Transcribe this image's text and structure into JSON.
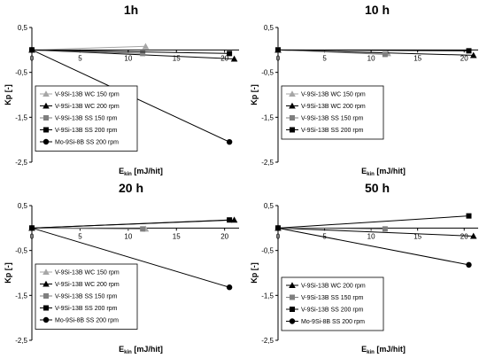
{
  "chart_data": [
    {
      "type": "line",
      "title": "1h",
      "xlabel": "E",
      "xlabel_sub": "kin",
      "xlabel_unit": " [mJ/hit]",
      "ylabel": "Kp [-]",
      "xlim": [
        0,
        21.5
      ],
      "ylim": [
        -2.5,
        0.5
      ],
      "xticks": [
        0,
        5,
        10,
        15,
        20
      ],
      "yticks": [
        0.5,
        -0.5,
        -1.5,
        -2.5
      ],
      "ytick_labels": [
        "0,5",
        "-0,5",
        "-1,5",
        "-2,5"
      ],
      "series": [
        {
          "name": "V-9Si-13B WC 150 rpm",
          "marker": "triangle",
          "color": "#a6a6a6",
          "x": [
            0,
            11.8
          ],
          "y": [
            0,
            0.08
          ]
        },
        {
          "name": "V-9Si-13B WC 200 rpm",
          "marker": "triangle",
          "color": "#000000",
          "x": [
            0,
            21
          ],
          "y": [
            0,
            -0.2
          ]
        },
        {
          "name": "V-9Si-13B SS 150 rpm",
          "marker": "square",
          "color": "#7f7f7f",
          "x": [
            0,
            11.5
          ],
          "y": [
            0,
            -0.08
          ]
        },
        {
          "name": "V-9Si-13B SS 200 rpm",
          "marker": "square",
          "color": "#000000",
          "x": [
            0,
            20.5
          ],
          "y": [
            0,
            -0.08
          ]
        },
        {
          "name": "Mo-9Si-8B SS 200 rpm",
          "marker": "circle",
          "color": "#000000",
          "x": [
            0,
            20.5
          ],
          "y": [
            0,
            -2.05
          ]
        }
      ]
    },
    {
      "type": "line",
      "title": "10 h",
      "xlabel": "E",
      "xlabel_sub": "kin",
      "xlabel_unit": " [mJ/hit]",
      "ylabel": "Kp [-]",
      "xlim": [
        0,
        21.5
      ],
      "ylim": [
        -2.5,
        0.5
      ],
      "xticks": [
        0,
        5,
        10,
        15,
        20
      ],
      "yticks": [
        0.5,
        -0.5,
        -1.5,
        -2.5
      ],
      "ytick_labels": [
        "0,5",
        "-0,5",
        "-1,5",
        "-2,5"
      ],
      "series": [
        {
          "name": "V-9Si-13B WC 150 rpm",
          "marker": "triangle",
          "color": "#a6a6a6",
          "x": [
            0,
            11.8
          ],
          "y": [
            0,
            -0.08
          ]
        },
        {
          "name": "V-9Si-13B WC 200 rpm",
          "marker": "triangle",
          "color": "#000000",
          "x": [
            0,
            21
          ],
          "y": [
            0,
            -0.12
          ]
        },
        {
          "name": "V-9Si-13B SS 150 rpm",
          "marker": "square",
          "color": "#7f7f7f",
          "x": [
            0,
            11.5
          ],
          "y": [
            0,
            -0.1
          ]
        },
        {
          "name": "V-9Si-13B SS 200 rpm",
          "marker": "square",
          "color": "#000000",
          "x": [
            0,
            20.5
          ],
          "y": [
            0,
            -0.02
          ]
        }
      ]
    },
    {
      "type": "line",
      "title": "20 h",
      "xlabel": "E",
      "xlabel_sub": "kin",
      "xlabel_unit": " [mJ/hit]",
      "ylabel": "Kp [-]",
      "xlim": [
        0,
        21.5
      ],
      "ylim": [
        -2.5,
        0.5
      ],
      "xticks": [
        0,
        5,
        10,
        15,
        20
      ],
      "yticks": [
        0.5,
        -0.5,
        -1.5,
        -2.5
      ],
      "ytick_labels": [
        "0,5",
        "-0,5",
        "-1,5",
        "-2,5"
      ],
      "series": [
        {
          "name": "V-9Si-13B WC 150 rpm",
          "marker": "triangle",
          "color": "#a6a6a6",
          "x": [
            0,
            11.8
          ],
          "y": [
            0,
            -0.02
          ]
        },
        {
          "name": "V-9Si-13B WC 200 rpm",
          "marker": "triangle",
          "color": "#000000",
          "x": [
            0,
            21
          ],
          "y": [
            0,
            0.18
          ]
        },
        {
          "name": "V-9Si-13B SS 150 rpm",
          "marker": "square",
          "color": "#7f7f7f",
          "x": [
            0,
            11.5
          ],
          "y": [
            0,
            -0.02
          ]
        },
        {
          "name": "V-9Si-13B SS 200 rpm",
          "marker": "square",
          "color": "#000000",
          "x": [
            0,
            20.5
          ],
          "y": [
            0,
            0.18
          ]
        },
        {
          "name": "Mo-9Si-8B SS 200 rpm",
          "marker": "circle",
          "color": "#000000",
          "x": [
            0,
            20.5
          ],
          "y": [
            0,
            -1.32
          ]
        }
      ]
    },
    {
      "type": "line",
      "title": "50 h",
      "xlabel": "E",
      "xlabel_sub": "kin",
      "xlabel_unit": " [mJ/hit]",
      "ylabel": "Kp [-]",
      "xlim": [
        0,
        21.5
      ],
      "ylim": [
        -2.5,
        0.5
      ],
      "xticks": [
        0,
        5,
        10,
        15,
        20
      ],
      "yticks": [
        0.5,
        -0.5,
        -1.5,
        -2.5
      ],
      "ytick_labels": [
        "0,5",
        "-0,5",
        "-1,5",
        "-2,5"
      ],
      "series": [
        {
          "name": "V-9Si-13B WC 200 rpm",
          "marker": "triangle",
          "color": "#000000",
          "x": [
            0,
            21
          ],
          "y": [
            0,
            -0.18
          ]
        },
        {
          "name": "V-9Si-13B SS 150 rpm",
          "marker": "square",
          "color": "#7f7f7f",
          "x": [
            0,
            11.5
          ],
          "y": [
            0,
            -0.02
          ]
        },
        {
          "name": "V-9Si-13B SS 200 rpm",
          "marker": "square",
          "color": "#000000",
          "x": [
            0,
            20.5
          ],
          "y": [
            0,
            0.27
          ]
        },
        {
          "name": "Mo-9Si-8B SS 200 rpm",
          "marker": "circle",
          "color": "#000000",
          "x": [
            0,
            20.5
          ],
          "y": [
            0,
            -0.82
          ]
        }
      ]
    }
  ]
}
